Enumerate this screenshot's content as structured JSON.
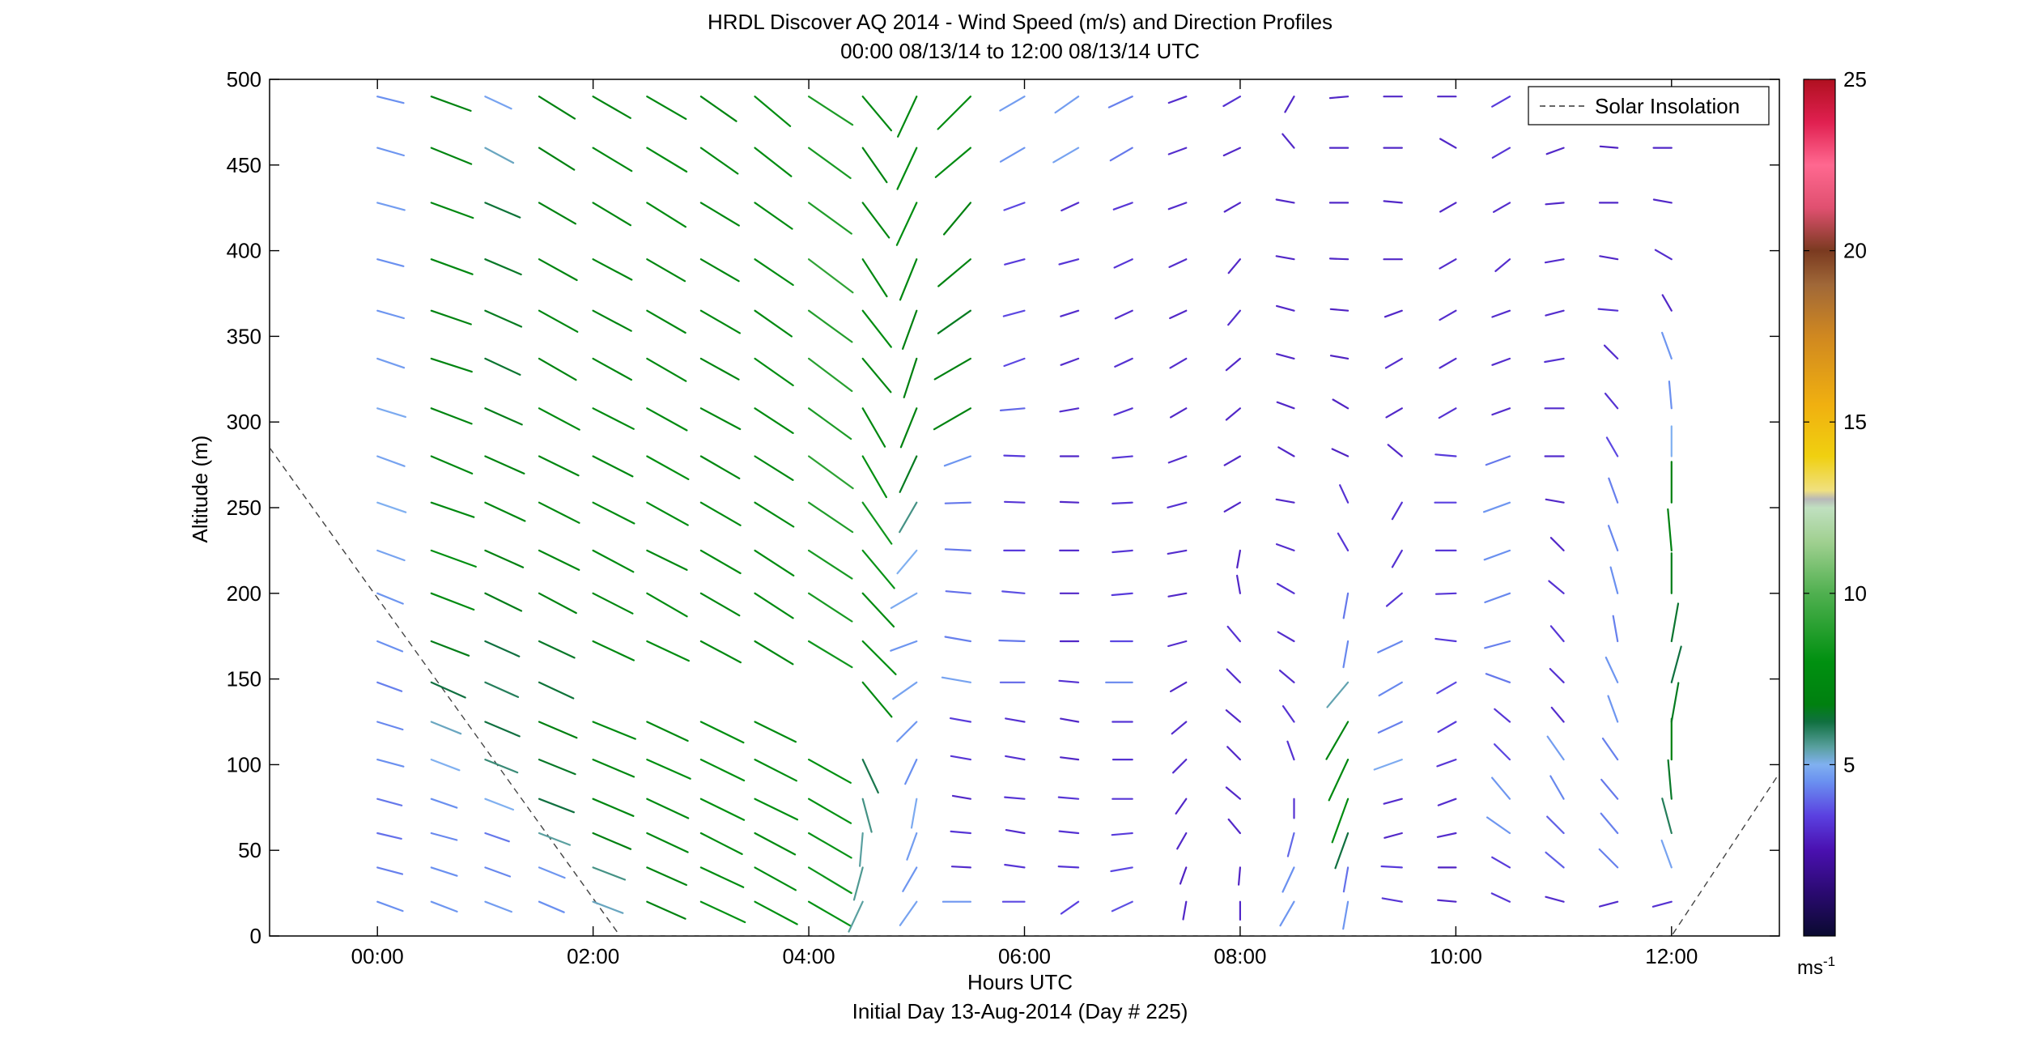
{
  "chart_data": {
    "type": "quiver",
    "title": "HRDL Discover AQ 2014 - Wind Speed (m/s) and Direction Profiles",
    "subtitle": "00:00 08/13/14 to 12:00 08/13/14  UTC",
    "xlabel": "Hours UTC",
    "xlabel2": "Initial Day 13-Aug-2014 (Day # 225)",
    "ylabel": "Altitude (m)",
    "xlim": [
      -1,
      13
    ],
    "ylim": [
      0,
      500
    ],
    "x_ticks": [
      0,
      2,
      4,
      6,
      8,
      10,
      12
    ],
    "x_tick_labels": [
      "00:00",
      "02:00",
      "04:00",
      "06:00",
      "08:00",
      "10:00",
      "12:00"
    ],
    "y_ticks": [
      0,
      50,
      100,
      150,
      200,
      250,
      300,
      350,
      400,
      450,
      500
    ],
    "y_tick_labels": [
      "0",
      "50",
      "100",
      "150",
      "200",
      "250",
      "300",
      "350",
      "400",
      "450",
      "500"
    ],
    "legend": {
      "label": "Solar Insolation",
      "placement": "top-right"
    },
    "colorbar": {
      "min": 0,
      "max": 25,
      "ticks": [
        5,
        10,
        15,
        20,
        25
      ],
      "tick_labels": [
        "5",
        "10",
        "15",
        "20",
        "25"
      ],
      "unit_label": "ms",
      "unit_exp": "-1"
    },
    "solar_insolation": [
      {
        "x": -1,
        "y": 285
      },
      {
        "x": 2.25,
        "y": 0
      },
      {
        "x": 12,
        "y": 0
      },
      {
        "x": 13,
        "y": 95
      }
    ],
    "altitudes": [
      20,
      40,
      60,
      80,
      103,
      125,
      148,
      172,
      200,
      225,
      253,
      280,
      308,
      337,
      365,
      395,
      428,
      460,
      490
    ],
    "profiles": [
      {
        "t": 0.0,
        "speed": [
          4.5,
          4.3,
          4.1,
          4.2,
          4.5,
          4.4,
          4.3,
          4.5,
          4.6,
          4.8,
          5.0,
          4.8,
          4.9,
          4.7,
          4.6,
          4.5,
          4.7,
          4.6,
          4.5
        ],
        "dir": [
          290,
          285,
          283,
          285,
          285,
          287,
          290,
          292,
          292,
          290,
          289,
          290,
          287,
          289,
          286,
          285,
          285,
          286,
          284
        ]
      },
      {
        "t": 0.5,
        "speed": [
          4.6,
          4.5,
          4.4,
          4.5,
          5.0,
          5.3,
          6.2,
          6.7,
          7.6,
          7.9,
          7.5,
          7.4,
          7.2,
          7.1,
          7.0,
          7.3,
          7.4,
          7.2,
          7.0
        ],
        "dir": [
          291,
          288,
          285,
          289,
          291,
          292,
          294,
          291,
          291,
          290,
          289,
          293,
          291,
          288,
          289,
          290,
          290,
          292,
          290
        ]
      },
      {
        "t": 1.0,
        "speed": [
          4.7,
          4.4,
          4.2,
          5.0,
          5.8,
          6.2,
          6.0,
          6.2,
          6.7,
          6.9,
          7.3,
          7.1,
          6.7,
          6.4,
          6.6,
          6.5,
          6.3,
          5.3,
          4.8
        ],
        "dir": [
          291,
          290,
          289,
          291,
          292,
          293,
          294,
          294,
          296,
          294,
          295,
          294,
          294,
          295,
          294,
          293,
          293,
          298,
          295
        ]
      },
      {
        "t": 1.5,
        "speed": [
          4.5,
          4.6,
          5.5,
          6.2,
          6.5,
          6.8,
          6.3,
          6.5,
          7.0,
          7.4,
          7.5,
          7.3,
          7.6,
          7.1,
          7.3,
          7.2,
          7.0,
          6.9,
          7.0
        ],
        "dir": [
          293,
          292,
          291,
          291,
          292,
          293,
          295,
          295,
          298,
          296,
          297,
          296,
          298,
          300,
          299,
          299,
          300,
          302,
          302
        ]
      },
      {
        "t": 2.0,
        "speed": [
          5.3,
          5.7,
          6.8,
          7.3,
          7.4,
          7.6,
          null,
          7.5,
          7.4,
          7.6,
          7.7,
          7.4,
          7.6,
          7.3,
          7.2,
          7.3,
          7.3,
          7.5,
          7.2
        ],
        "dir": [
          291,
          291,
          293,
          293,
          293,
          292,
          null,
          295,
          297,
          298,
          297,
          297,
          297,
          299,
          298,
          298,
          301,
          301,
          300
        ]
      },
      {
        "t": 2.5,
        "speed": [
          7.0,
          7.2,
          7.5,
          7.6,
          7.9,
          7.5,
          null,
          7.7,
          7.7,
          7.4,
          7.8,
          7.9,
          7.6,
          7.5,
          7.4,
          7.3,
          7.6,
          7.7,
          7.5
        ],
        "dir": [
          294,
          294,
          295,
          295,
          294,
          295,
          null,
          295,
          300,
          296,
          299,
          299,
          299,
          300,
          300,
          300,
          302,
          301,
          300
        ]
      },
      {
        "t": 3.0,
        "speed": [
          8.1,
          7.8,
          7.7,
          8.0,
          8.0,
          7.9,
          null,
          7.5,
          7.4,
          7.6,
          7.6,
          7.4,
          7.4,
          7.2,
          7.5,
          7.3,
          7.4,
          7.5,
          7.2
        ],
        "dir": [
          295,
          295,
          297,
          296,
          296,
          296,
          null,
          298,
          300,
          300,
          300,
          300,
          298,
          299,
          300,
          300,
          301,
          305,
          305
        ]
      },
      {
        "t": 3.5,
        "speed": [
          8.0,
          7.8,
          7.6,
          7.9,
          7.8,
          7.6,
          null,
          7.4,
          7.6,
          7.7,
          7.6,
          7.5,
          7.6,
          7.8,
          7.5,
          7.7,
          7.6,
          7.7,
          7.7
        ],
        "dir": [
          298,
          299,
          298,
          296,
          297,
          296,
          null,
          301,
          303,
          303,
          302,
          302,
          303,
          305,
          305,
          304,
          305,
          308,
          310
        ]
      },
      {
        "t": 4.0,
        "speed": [
          8.1,
          8.3,
          8.2,
          8.1,
          8.0,
          null,
          null,
          8.4,
          8.6,
          8.6,
          8.8,
          9.1,
          8.7,
          9.0,
          8.9,
          9.2,
          8.8,
          8.6,
          8.7
        ],
        "dir": [
          300,
          301,
          300,
          300,
          299,
          null,
          null,
          301,
          303,
          303,
          304,
          306,
          306,
          307,
          306,
          307,
          306,
          306,
          303
        ]
      },
      {
        "t": 4.5,
        "speed": [
          5.5,
          5.6,
          5.5,
          5.7,
          6.1,
          null,
          7.5,
          7.8,
          7.6,
          8.2,
          8.4,
          7.9,
          7.4,
          7.3,
          7.7,
          7.4,
          7.3,
          7.0,
          7.4
        ],
        "dir": [
          25,
          15,
          5,
          345,
          335,
          null,
          320,
          315,
          317,
          320,
          325,
          330,
          330,
          320,
          322,
          327,
          323,
          325,
          320
        ]
      },
      {
        "t": 5.0,
        "speed": [
          4.8,
          4.6,
          4.7,
          4.9,
          4.5,
          4.6,
          4.8,
          4.6,
          4.9,
          5.0,
          5.7,
          6.6,
          7.0,
          6.8,
          6.8,
          7.3,
          7.8,
          7.6,
          7.4
        ],
        "dir": [
          35,
          30,
          20,
          10,
          25,
          45,
          55,
          70,
          60,
          40,
          30,
          25,
          22,
          18,
          20,
          22,
          25,
          25,
          25
        ]
      },
      {
        "t": 5.5,
        "speed": [
          4.6,
          3.1,
          3.3,
          3.0,
          3.3,
          3.4,
          4.8,
          4.3,
          4.1,
          4.2,
          4.2,
          4.6,
          7.0,
          6.9,
          6.6,
          7.0,
          6.9,
          7.6,
          7.7
        ],
        "dir": [
          90,
          93,
          95,
          100,
          100,
          100,
          100,
          100,
          95,
          93,
          88,
          70,
          60,
          60,
          55,
          50,
          40,
          50,
          45
        ]
      },
      {
        "t": 6.0,
        "speed": [
          3.6,
          3.3,
          3.1,
          3.3,
          3.2,
          3.2,
          4.0,
          4.2,
          3.7,
          3.4,
          3.3,
          3.4,
          4.0,
          3.6,
          3.6,
          3.4,
          3.6,
          4.6,
          4.7
        ],
        "dir": [
          90,
          98,
          100,
          95,
          100,
          100,
          90,
          92,
          95,
          90,
          92,
          92,
          85,
          70,
          75,
          75,
          70,
          60,
          60
        ]
      },
      {
        "t": 6.5,
        "speed": [
          3.5,
          3.3,
          3.2,
          3.3,
          3.0,
          3.0,
          3.2,
          3.0,
          3.0,
          3.1,
          3.0,
          3.0,
          3.1,
          3.1,
          3.1,
          3.3,
          3.1,
          4.8,
          4.7
        ],
        "dir": [
          55,
          93,
          96,
          95,
          97,
          100,
          95,
          90,
          90,
          90,
          92,
          90,
          80,
          70,
          72,
          75,
          65,
          60,
          55
        ]
      },
      {
        "t": 7.0,
        "speed": [
          3.7,
          3.6,
          3.4,
          3.3,
          3.2,
          3.3,
          4.4,
          3.6,
          3.4,
          3.3,
          3.3,
          3.3,
          3.2,
          3.2,
          3.1,
          3.3,
          3.3,
          4.2,
          4.3
        ],
        "dir": [
          65,
          80,
          85,
          90,
          90,
          90,
          90,
          90,
          85,
          85,
          87,
          85,
          70,
          65,
          65,
          65,
          70,
          60,
          65
        ]
      },
      {
        "t": 7.5,
        "speed": [
          3.0,
          2.9,
          3.0,
          3.0,
          3.1,
          3.1,
          3.0,
          3.1,
          3.0,
          3.1,
          3.2,
          3.1,
          3.0,
          3.1,
          3.0,
          3.1,
          3.1,
          3.1,
          3.1
        ],
        "dir": [
          10,
          20,
          30,
          35,
          45,
          50,
          60,
          75,
          80,
          80,
          75,
          70,
          60,
          60,
          65,
          65,
          70,
          70,
          70
        ]
      },
      {
        "t": 8.0,
        "speed": [
          3.0,
          2.9,
          3.0,
          3.0,
          3.0,
          3.0,
          3.1,
          3.2,
          3.0,
          2.9,
          3.0,
          3.0,
          3.0,
          3.0,
          3.1,
          3.0,
          3.0,
          3.0,
          3.2
        ],
        "dir": [
          0,
          5,
          140,
          130,
          135,
          130,
          135,
          140,
          170,
          10,
          60,
          60,
          50,
          50,
          40,
          40,
          60,
          65,
          60
        ]
      },
      {
        "t": 8.5,
        "speed": [
          4.6,
          4.5,
          4.0,
          3.2,
          3.2,
          3.2,
          3.1,
          3.1,
          3.2,
          3.1,
          3.0,
          3.0,
          3.0,
          3.0,
          3.0,
          3.0,
          3.0,
          3.0,
          3.0
        ],
        "dir": [
          30,
          25,
          15,
          0,
          160,
          145,
          130,
          120,
          120,
          110,
          100,
          120,
          110,
          105,
          105,
          100,
          100,
          140,
          30
        ]
      },
      {
        "t": 9.0,
        "speed": [
          4.6,
          4.1,
          6.2,
          7.7,
          7.5,
          7.2,
          5.4,
          4.4,
          4.2,
          3.3,
          3.2,
          2.9,
          2.9,
          2.9,
          2.9,
          3.0,
          3.0,
          3.0,
          3.0
        ],
        "dir": [
          10,
          10,
          20,
          20,
          25,
          30,
          40,
          10,
          10,
          150,
          155,
          115,
          120,
          100,
          95,
          92,
          90,
          90,
          85
        ]
      },
      {
        "t": 9.5,
        "speed": [
          3.3,
          3.4,
          3.0,
          3.1,
          4.9,
          4.3,
          4.4,
          4.4,
          3.3,
          3.2,
          3.2,
          3.0,
          3.0,
          3.1,
          3.0,
          3.0,
          3.0,
          3.0,
          3.0
        ],
        "dir": [
          100,
          93,
          75,
          75,
          70,
          65,
          60,
          65,
          50,
          30,
          30,
          130,
          60,
          60,
          70,
          90,
          95,
          90,
          90
        ]
      },
      {
        "t": 10.0,
        "speed": [
          3.0,
          2.9,
          3.1,
          3.1,
          3.3,
          3.4,
          3.6,
          3.4,
          3.3,
          3.3,
          3.5,
          3.4,
          3.2,
          3.1,
          3.1,
          3.1,
          3.0,
          3.0,
          3.0
        ],
        "dir": [
          95,
          90,
          78,
          70,
          70,
          60,
          60,
          97,
          88,
          90,
          90,
          95,
          60,
          60,
          60,
          60,
          60,
          120,
          90
        ]
      },
      {
        "t": 10.5,
        "speed": [
          3.3,
          3.4,
          4.6,
          4.6,
          3.6,
          3.3,
          4.2,
          4.3,
          4.4,
          4.5,
          4.6,
          4.2,
          3.1,
          3.1,
          3.1,
          3.1,
          3.1,
          3.3,
          3.4
        ],
        "dir": [
          115,
          120,
          125,
          140,
          135,
          130,
          110,
          75,
          70,
          70,
          70,
          70,
          70,
          70,
          70,
          50,
          60,
          60,
          60
        ]
      },
      {
        "t": 11.0,
        "speed": [
          3.1,
          3.9,
          3.9,
          4.4,
          4.7,
          3.1,
          3.2,
          3.3,
          3.2,
          3.0,
          3.0,
          3.1,
          3.1,
          3.2,
          3.1,
          3.1,
          3.0,
          3.0,
          3.0
        ],
        "dir": [
          105,
          130,
          135,
          150,
          145,
          140,
          135,
          140,
          130,
          135,
          100,
          90,
          90,
          80,
          75,
          80,
          85,
          70,
          55
        ]
      },
      {
        "t": 11.5,
        "speed": [
          3.1,
          4.3,
          4.3,
          4.2,
          4.3,
          4.6,
          4.6,
          4.3,
          4.5,
          4.4,
          4.3,
          3.6,
          3.2,
          3.1,
          3.2,
          3.0,
          3.0,
          2.9,
          2.9
        ],
        "dir": [
          75,
          135,
          140,
          140,
          145,
          160,
          155,
          170,
          165,
          160,
          160,
          150,
          140,
          135,
          95,
          100,
          90,
          95,
          90
        ]
      },
      {
        "t": 12.0,
        "speed": [
          3.2,
          4.8,
          6.0,
          6.5,
          6.8,
          6.6,
          6.2,
          6.4,
          6.7,
          6.9,
          6.8,
          5.0,
          4.5,
          4.6,
          3.0,
          3.1,
          3.0,
          3.0,
          3.0
        ],
        "dir": [
          75,
          160,
          165,
          175,
          180,
          190,
          195,
          190,
          180,
          175,
          180,
          180,
          175,
          160,
          150,
          120,
          100,
          90,
          90
        ]
      }
    ]
  }
}
